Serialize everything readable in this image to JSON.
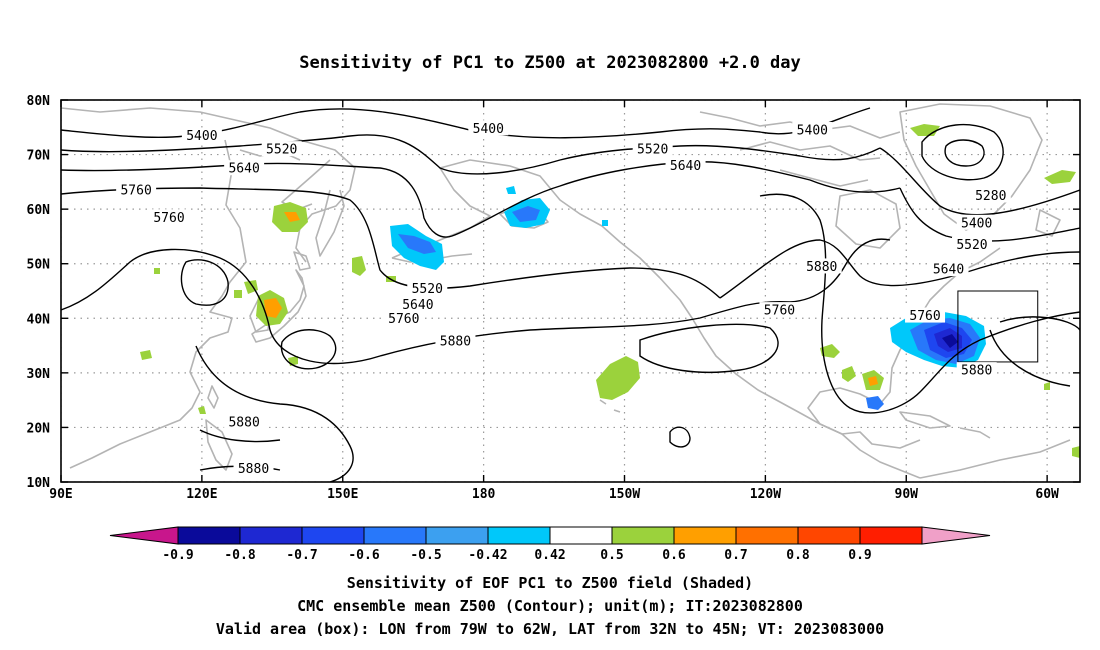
{
  "title": "Sensitivity of PC1 to Z500 at 2023082800 +2.0 day",
  "map": {
    "lon_range": [
      90,
      307
    ],
    "lat_range": [
      10,
      80
    ],
    "x_ticks": [
      "90E",
      "120E",
      "150E",
      "180",
      "150W",
      "120W",
      "90W",
      "60W"
    ],
    "x_tick_lons": [
      90,
      120,
      150,
      180,
      210,
      240,
      270,
      300
    ],
    "y_ticks": [
      "80N",
      "70N",
      "60N",
      "50N",
      "40N",
      "30N",
      "20N",
      "10N"
    ],
    "y_tick_lats": [
      80,
      70,
      60,
      50,
      40,
      30,
      20,
      10
    ],
    "contour_labels": [
      {
        "text": "5400",
        "lon": 120,
        "lat": 73.5
      },
      {
        "text": "5400",
        "lon": 181,
        "lat": 74.8
      },
      {
        "text": "5400",
        "lon": 250,
        "lat": 74.5
      },
      {
        "text": "5520",
        "lon": 137,
        "lat": 71
      },
      {
        "text": "5520",
        "lon": 216,
        "lat": 71
      },
      {
        "text": "5640",
        "lon": 129,
        "lat": 67.5
      },
      {
        "text": "5640",
        "lon": 223,
        "lat": 68
      },
      {
        "text": "5760",
        "lon": 106,
        "lat": 63.5
      },
      {
        "text": "5760",
        "lon": 113,
        "lat": 58.5
      },
      {
        "text": "5280",
        "lon": 288,
        "lat": 62.5
      },
      {
        "text": "5400",
        "lon": 285,
        "lat": 57.5
      },
      {
        "text": "5520",
        "lon": 284,
        "lat": 53.5
      },
      {
        "text": "5640",
        "lon": 279,
        "lat": 49
      },
      {
        "text": "5880",
        "lon": 252,
        "lat": 49.5
      },
      {
        "text": "5760",
        "lon": 243,
        "lat": 41.5
      },
      {
        "text": "5760",
        "lon": 274,
        "lat": 40.5
      },
      {
        "text": "5520",
        "lon": 168,
        "lat": 45.5
      },
      {
        "text": "5640",
        "lon": 166,
        "lat": 42.5
      },
      {
        "text": "5760",
        "lon": 163,
        "lat": 40
      },
      {
        "text": "5880",
        "lon": 174,
        "lat": 35.8
      },
      {
        "text": "5880",
        "lon": 129,
        "lat": 21
      },
      {
        "text": "5880",
        "lon": 131,
        "lat": 12.5
      },
      {
        "text": "5880",
        "lon": 285,
        "lat": 30.5
      }
    ],
    "valid_box": {
      "lon": [
        281,
        298
      ],
      "lat": [
        32,
        45
      ]
    }
  },
  "colorbar": {
    "labels": [
      "-0.9",
      "-0.8",
      "-0.7",
      "-0.6",
      "-0.5",
      "-0.42",
      "0.42",
      "0.5",
      "0.6",
      "0.7",
      "0.8",
      "0.9"
    ],
    "colors": [
      "#c8168c",
      "#0a0a9a",
      "#1e28d2",
      "#1e46f0",
      "#2878fa",
      "#3ca0f0",
      "#00c8fa",
      "#ffffff",
      "#9bd23c",
      "#ff9f00",
      "#ff7000",
      "#ff4600",
      "#ff1e00",
      "#f0a0c8"
    ]
  },
  "captions": [
    "Sensitivity of EOF PC1 to Z500 field (Shaded)",
    "CMC ensemble mean Z500 (Contour); unit(m); IT:2023082800",
    "Valid area (box): LON from 79W to 62W, LAT from 32N to 45N; VT: 2023083000"
  ]
}
